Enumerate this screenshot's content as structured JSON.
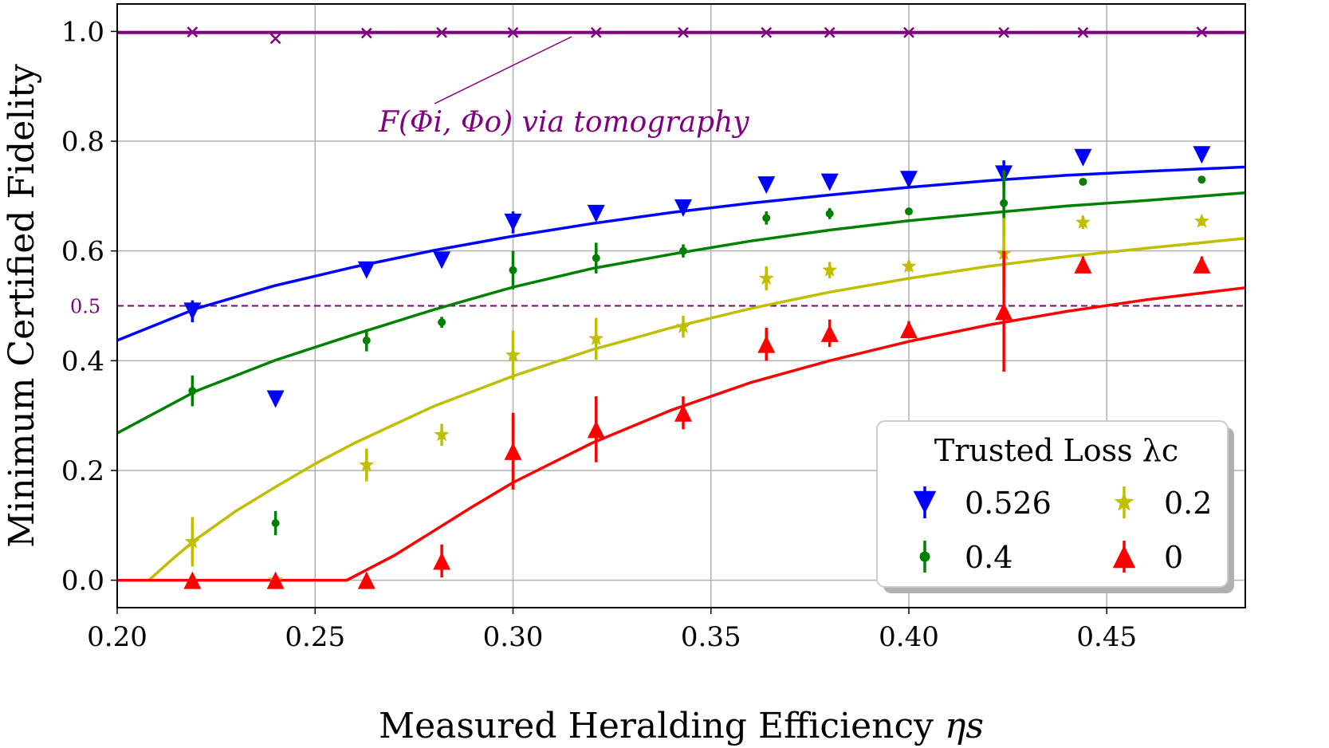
{
  "chart_data": {
    "type": "scatter",
    "xlabel": "Measured Heralding Efficiency",
    "xlabel_symbol": "ηs",
    "ylabel": "Minimum Certified Fidelity",
    "xlim": [
      0.2,
      0.485
    ],
    "ylim": [
      -0.05,
      1.05
    ],
    "xticks": [
      "0.20",
      "0.25",
      "0.30",
      "0.35",
      "0.40",
      "0.45"
    ],
    "yticks": [
      "0.0",
      "0.2",
      "0.4",
      "0.6",
      "0.8",
      "1.0"
    ],
    "grid": true,
    "reference_line": {
      "value": 0.5,
      "label": "0.5",
      "color": "#800080",
      "style": "dashed"
    },
    "tomography": {
      "annotation": "F(Φi, Φo) via tomography",
      "color": "#800080",
      "line_value": 0.998,
      "x": [
        0.219,
        0.24,
        0.263,
        0.282,
        0.3,
        0.321,
        0.343,
        0.364,
        0.38,
        0.4,
        0.424,
        0.444,
        0.474
      ],
      "y": [
        0.999,
        0.987,
        0.997,
        0.998,
        0.998,
        0.998,
        0.998,
        0.998,
        0.998,
        0.998,
        0.998,
        0.998,
        0.999
      ]
    },
    "legend": {
      "title": "Trusted Loss λc",
      "position": "lower-right"
    },
    "series": [
      {
        "name": "0.526",
        "color": "#0000ff",
        "marker": "triangle-down",
        "x": [
          0.219,
          0.24,
          0.263,
          0.282,
          0.3,
          0.321,
          0.343,
          0.364,
          0.38,
          0.4,
          0.424,
          0.444,
          0.474
        ],
        "y": [
          0.49,
          0.33,
          0.565,
          0.583,
          0.652,
          0.668,
          0.678,
          0.72,
          0.725,
          0.73,
          0.74,
          0.77,
          0.775
        ],
        "err": [
          0.02,
          0.01,
          0.005,
          0.005,
          0.02,
          0.012,
          0.008,
          0.005,
          0.005,
          0.005,
          0.025,
          0.005,
          0.005
        ],
        "fit": {
          "x": [
            0.2,
            0.22,
            0.24,
            0.26,
            0.28,
            0.3,
            0.32,
            0.34,
            0.36,
            0.38,
            0.4,
            0.42,
            0.44,
            0.46,
            0.485
          ],
          "y": [
            0.437,
            0.495,
            0.537,
            0.571,
            0.601,
            0.627,
            0.65,
            0.67,
            0.687,
            0.702,
            0.716,
            0.728,
            0.738,
            0.745,
            0.753
          ]
        }
      },
      {
        "name": "0.4",
        "color": "#008000",
        "marker": "circle",
        "x": [
          0.219,
          0.24,
          0.263,
          0.282,
          0.3,
          0.321,
          0.343,
          0.364,
          0.38,
          0.4,
          0.424,
          0.444,
          0.474
        ],
        "y": [
          0.345,
          0.104,
          0.437,
          0.47,
          0.565,
          0.587,
          0.6,
          0.66,
          0.668,
          0.672,
          0.687,
          0.726,
          0.73
        ],
        "err": [
          0.028,
          0.022,
          0.02,
          0.01,
          0.035,
          0.028,
          0.012,
          0.012,
          0.01,
          0.005,
          0.06,
          0.005,
          0.005
        ],
        "fit": {
          "x": [
            0.2,
            0.22,
            0.24,
            0.26,
            0.28,
            0.3,
            0.32,
            0.34,
            0.36,
            0.38,
            0.4,
            0.42,
            0.44,
            0.46,
            0.485
          ],
          "y": [
            0.268,
            0.345,
            0.401,
            0.448,
            0.493,
            0.534,
            0.568,
            0.594,
            0.618,
            0.638,
            0.655,
            0.669,
            0.682,
            0.692,
            0.706
          ]
        }
      },
      {
        "name": "0.2",
        "color": "#bfbf00",
        "marker": "star",
        "x": [
          0.219,
          0.24,
          0.263,
          0.282,
          0.3,
          0.321,
          0.343,
          0.364,
          0.38,
          0.4,
          0.424,
          0.444,
          0.474
        ],
        "y": [
          0.07,
          0.0,
          0.21,
          0.265,
          0.41,
          0.44,
          0.462,
          0.55,
          0.565,
          0.572,
          0.595,
          0.652,
          0.654
        ],
        "err": [
          0.045,
          0.005,
          0.03,
          0.02,
          0.045,
          0.038,
          0.02,
          0.022,
          0.015,
          0.01,
          0.065,
          0.012,
          0.008
        ],
        "fit": {
          "x": [
            0.208,
            0.215,
            0.22,
            0.23,
            0.24,
            0.25,
            0.26,
            0.28,
            0.3,
            0.32,
            0.34,
            0.36,
            0.38,
            0.4,
            0.42,
            0.44,
            0.46,
            0.485
          ],
          "y": [
            0.0,
            0.045,
            0.075,
            0.126,
            0.17,
            0.212,
            0.25,
            0.317,
            0.372,
            0.42,
            0.46,
            0.495,
            0.525,
            0.55,
            0.572,
            0.59,
            0.605,
            0.623
          ]
        }
      },
      {
        "name": "0",
        "color": "#ff0000",
        "marker": "triangle-up",
        "x": [
          0.219,
          0.24,
          0.263,
          0.282,
          0.3,
          0.321,
          0.343,
          0.364,
          0.38,
          0.4,
          0.424,
          0.444,
          0.474
        ],
        "y": [
          0.0,
          0.0,
          0.0,
          0.035,
          0.235,
          0.275,
          0.305,
          0.43,
          0.45,
          0.457,
          0.49,
          0.575,
          0.575
        ],
        "err": [
          0.005,
          0.005,
          0.005,
          0.03,
          0.07,
          0.06,
          0.03,
          0.03,
          0.025,
          0.015,
          0.11,
          0.015,
          0.015
        ],
        "fit": {
          "x": [
            0.2,
            0.258,
            0.27,
            0.28,
            0.29,
            0.3,
            0.32,
            0.34,
            0.36,
            0.38,
            0.4,
            0.42,
            0.44,
            0.46,
            0.485
          ],
          "y": [
            0.0,
            0.0,
            0.045,
            0.09,
            0.135,
            0.178,
            0.25,
            0.31,
            0.36,
            0.4,
            0.435,
            0.465,
            0.49,
            0.511,
            0.533
          ]
        }
      }
    ]
  }
}
